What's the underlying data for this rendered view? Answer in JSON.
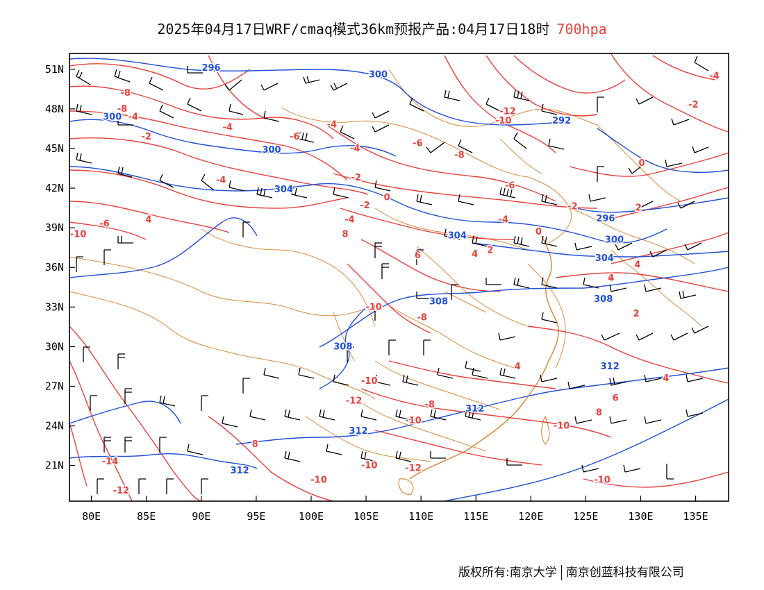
{
  "title": {
    "main": "2025年04月17日WRF/cmaq模式36km预报产品:04月17日18时",
    "level": "700hpa"
  },
  "footer": {
    "copyright": "版权所有:南京大学",
    "company": "南京创蓝科技有限公司"
  },
  "colors": {
    "temperature": "#e8413b",
    "height": "#1f4fd8",
    "border": "#d98a3a",
    "wind": "#000000",
    "frame": "#000000"
  },
  "chart_data": {
    "type": "map",
    "x_ticks": [
      "80E",
      "85E",
      "90E",
      "95E",
      "100E",
      "105E",
      "110E",
      "115E",
      "120E",
      "125E",
      "130E",
      "135E"
    ],
    "y_ticks": [
      "51N",
      "48N",
      "45N",
      "42N",
      "39N",
      "36N",
      "33N",
      "30N",
      "27N",
      "24N",
      "21N"
    ],
    "x_tick_values": [
      80,
      85,
      90,
      95,
      100,
      105,
      110,
      115,
      120,
      125,
      130,
      135
    ],
    "y_tick_values": [
      51,
      48,
      45,
      42,
      39,
      36,
      33,
      30,
      27,
      24,
      21
    ],
    "lon_range": [
      78,
      138
    ],
    "lat_range": [
      18.3,
      52.2
    ],
    "height_labels": [
      {
        "text": "296",
        "lon": 90.9,
        "lat": 51.1
      },
      {
        "text": "300",
        "lon": 106.1,
        "lat": 50.6
      },
      {
        "text": "300",
        "lon": 81.9,
        "lat": 47.4
      },
      {
        "text": "300",
        "lon": 96.4,
        "lat": 44.9
      },
      {
        "text": "292",
        "lon": 122.8,
        "lat": 47.1
      },
      {
        "text": "304",
        "lon": 97.5,
        "lat": 41.9
      },
      {
        "text": "296",
        "lon": 126.8,
        "lat": 39.7
      },
      {
        "text": "304",
        "lon": 113.3,
        "lat": 38.4
      },
      {
        "text": "300",
        "lon": 127.6,
        "lat": 38.1
      },
      {
        "text": "304",
        "lon": 126.7,
        "lat": 36.7
      },
      {
        "text": "308",
        "lon": 111.6,
        "lat": 33.4
      },
      {
        "text": "308",
        "lon": 126.6,
        "lat": 33.6
      },
      {
        "text": "308",
        "lon": 102.9,
        "lat": 30.0
      },
      {
        "text": "312",
        "lon": 127.2,
        "lat": 28.5
      },
      {
        "text": "312",
        "lon": 114.9,
        "lat": 25.3
      },
      {
        "text": "312",
        "lon": 104.3,
        "lat": 23.6
      },
      {
        "text": "312",
        "lon": 93.5,
        "lat": 20.6
      }
    ],
    "temperature_labels": [
      {
        "text": "-8",
        "lon": 83.1,
        "lat": 49.2
      },
      {
        "text": "-8",
        "lon": 82.8,
        "lat": 48.0
      },
      {
        "text": "-4",
        "lon": 83.8,
        "lat": 47.4
      },
      {
        "text": "-4",
        "lon": 92.4,
        "lat": 46.6
      },
      {
        "text": "-2",
        "lon": 85.0,
        "lat": 45.9
      },
      {
        "text": "-6",
        "lon": 98.5,
        "lat": 45.9
      },
      {
        "text": "-4",
        "lon": 101.9,
        "lat": 46.8
      },
      {
        "text": "-4",
        "lon": 104.0,
        "lat": 45.0
      },
      {
        "text": "-6",
        "lon": 109.7,
        "lat": 45.4
      },
      {
        "text": "-8",
        "lon": 113.5,
        "lat": 44.5
      },
      {
        "text": "-12",
        "lon": 117.9,
        "lat": 47.8
      },
      {
        "text": "-10",
        "lon": 117.5,
        "lat": 47.1
      },
      {
        "text": "-4",
        "lon": 136.7,
        "lat": 50.5
      },
      {
        "text": "-2",
        "lon": 134.8,
        "lat": 48.3
      },
      {
        "text": "0",
        "lon": 130.1,
        "lat": 43.9
      },
      {
        "text": "-4",
        "lon": 91.8,
        "lat": 42.6
      },
      {
        "text": "-2",
        "lon": 104.1,
        "lat": 42.8
      },
      {
        "text": "-6",
        "lon": 118.1,
        "lat": 42.2
      },
      {
        "text": "0",
        "lon": 106.9,
        "lat": 41.3
      },
      {
        "text": "-2",
        "lon": 104.9,
        "lat": 40.7
      },
      {
        "text": "-2",
        "lon": 123.8,
        "lat": 40.6
      },
      {
        "text": "2",
        "lon": 129.8,
        "lat": 40.5
      },
      {
        "text": "-6",
        "lon": 81.2,
        "lat": 39.3
      },
      {
        "text": "4",
        "lon": 85.2,
        "lat": 39.6
      },
      {
        "text": "-4",
        "lon": 103.5,
        "lat": 39.6
      },
      {
        "text": "-4",
        "lon": 117.5,
        "lat": 39.6
      },
      {
        "text": "0",
        "lon": 120.7,
        "lat": 38.7
      },
      {
        "text": "-10",
        "lon": 78.8,
        "lat": 38.5
      },
      {
        "text": "8",
        "lon": 103.1,
        "lat": 38.5
      },
      {
        "text": "6",
        "lon": 109.7,
        "lat": 36.9
      },
      {
        "text": "2",
        "lon": 116.3,
        "lat": 37.3
      },
      {
        "text": "4",
        "lon": 114.9,
        "lat": 37.0
      },
      {
        "text": "4",
        "lon": 127.3,
        "lat": 35.2
      },
      {
        "text": "4",
        "lon": 129.7,
        "lat": 36.2
      },
      {
        "text": "-10",
        "lon": 105.7,
        "lat": 33.0
      },
      {
        "text": "2",
        "lon": 129.6,
        "lat": 32.5
      },
      {
        "text": "-8",
        "lon": 110.1,
        "lat": 32.2
      },
      {
        "text": "4",
        "lon": 118.8,
        "lat": 28.5
      },
      {
        "text": "-10",
        "lon": 105.3,
        "lat": 27.4
      },
      {
        "text": "4",
        "lon": 132.3,
        "lat": 27.6
      },
      {
        "text": "-12",
        "lon": 103.9,
        "lat": 25.9
      },
      {
        "text": "6",
        "lon": 127.7,
        "lat": 26.1
      },
      {
        "text": "-8",
        "lon": 110.8,
        "lat": 25.6
      },
      {
        "text": "8",
        "lon": 126.2,
        "lat": 25.0
      },
      {
        "text": "-10",
        "lon": 109.3,
        "lat": 24.4
      },
      {
        "text": "-10",
        "lon": 122.8,
        "lat": 24.0
      },
      {
        "text": "8",
        "lon": 94.9,
        "lat": 22.6
      },
      {
        "text": "-14",
        "lon": 81.7,
        "lat": 21.3
      },
      {
        "text": "-10",
        "lon": 105.3,
        "lat": 21.0
      },
      {
        "text": "-12",
        "lon": 109.3,
        "lat": 20.8
      },
      {
        "text": "-10",
        "lon": 100.7,
        "lat": 19.9
      },
      {
        "text": "-12",
        "lon": 82.7,
        "lat": 19.1
      },
      {
        "text": "-10",
        "lon": 126.5,
        "lat": 19.9
      }
    ]
  }
}
